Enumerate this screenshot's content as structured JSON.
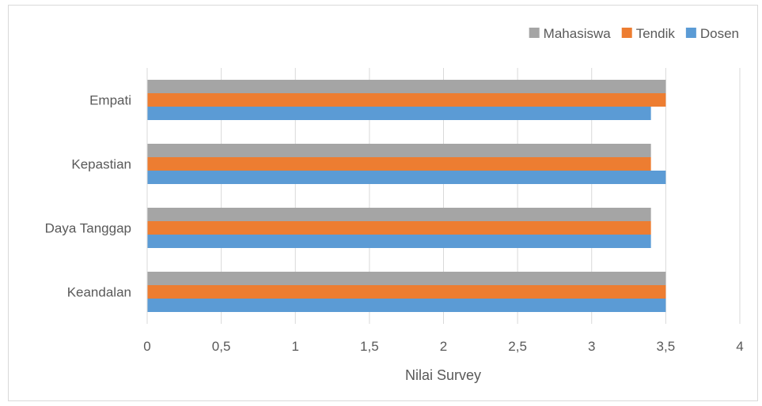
{
  "chart_data": {
    "type": "bar",
    "orientation": "horizontal",
    "title": "",
    "xlabel": "Nilai Survey",
    "ylabel": "",
    "xlim": [
      0,
      4
    ],
    "x_ticks": [
      "0",
      "0,5",
      "1",
      "1,5",
      "2",
      "2,5",
      "3",
      "3,5",
      "4"
    ],
    "grid": "vertical",
    "legend_position": "top-right",
    "categories": [
      "Keandalan",
      "Daya Tanggap",
      "Kepastian",
      "Empati"
    ],
    "series": [
      {
        "name": "Dosen",
        "color": "#5b9bd5",
        "values": [
          3.5,
          3.4,
          3.5,
          3.4
        ]
      },
      {
        "name": "Tendik",
        "color": "#ed7d31",
        "values": [
          3.5,
          3.4,
          3.4,
          3.5
        ]
      },
      {
        "name": "Mahasiswa",
        "color": "#a5a5a5",
        "values": [
          3.5,
          3.4,
          3.4,
          3.5
        ]
      }
    ],
    "legend_order": [
      "Mahasiswa",
      "Tendik",
      "Dosen"
    ]
  }
}
